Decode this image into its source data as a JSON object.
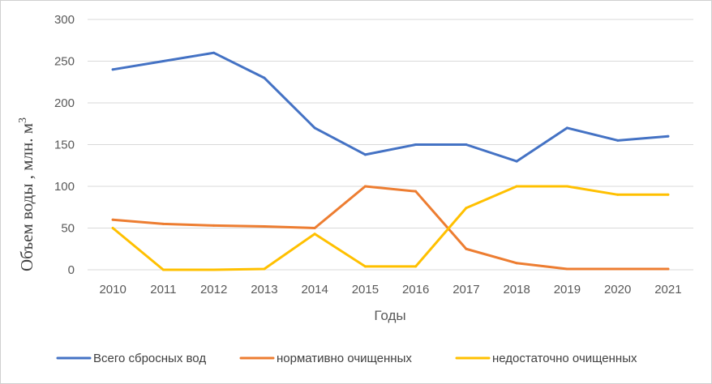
{
  "chart_data": {
    "type": "line",
    "title": "",
    "xlabel": "Годы",
    "ylabel": "Объем воды , млн. м",
    "ylabel_sup": "3",
    "ylim": [
      0,
      300
    ],
    "yticks": [
      "0",
      "50",
      "100",
      "150",
      "200",
      "250",
      "300"
    ],
    "categories": [
      "2010",
      "2011",
      "2012",
      "2013",
      "2014",
      "2015",
      "2016",
      "2017",
      "2018",
      "2019",
      "2020",
      "2021"
    ],
    "grid": true,
    "legend_position": "bottom",
    "series": [
      {
        "name": "Всего сбросных вод",
        "color": "#4472C4",
        "values": [
          240,
          250,
          260,
          230,
          170,
          138,
          150,
          150,
          130,
          170,
          155,
          160
        ]
      },
      {
        "name": "нормативно очищенных",
        "color": "#ED7D31",
        "values": [
          60,
          55,
          53,
          52,
          50,
          100,
          94,
          25,
          8,
          1,
          1,
          1
        ]
      },
      {
        "name": "недостаточно очищенных",
        "color": "#FFC000",
        "values": [
          50,
          0,
          0,
          1,
          43,
          4,
          4,
          74,
          100,
          100,
          90,
          90
        ]
      }
    ]
  }
}
